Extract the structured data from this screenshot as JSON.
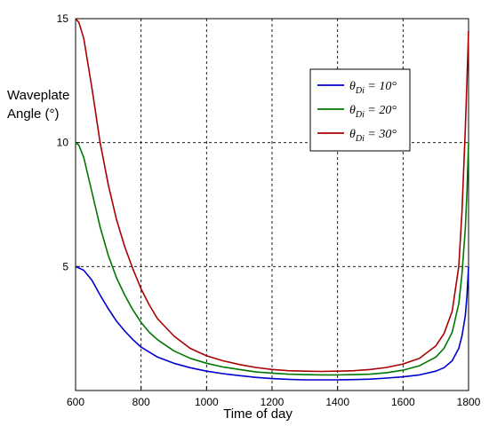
{
  "chart_data": {
    "type": "line",
    "ylabel_lines": [
      "Waveplate",
      "Angle (°)"
    ],
    "xlabel": "Time of day",
    "xlim": [
      600,
      1800
    ],
    "ylim": [
      0,
      15
    ],
    "xticks": [
      600,
      800,
      1000,
      1200,
      1400,
      1600,
      1800
    ],
    "yticks": [
      5,
      10,
      15
    ],
    "grid": true,
    "grid_style": "dashed",
    "legend_position": "upper-right",
    "series": [
      {
        "legend_symbol": "θ",
        "legend_sub": "Di",
        "legend_value": " = 10°",
        "color": "#0000cc",
        "x": [
          600,
          625,
          650,
          675,
          700,
          725,
          750,
          775,
          800,
          850,
          900,
          950,
          1000,
          1050,
          1100,
          1150,
          1200,
          1250,
          1300,
          1350,
          1400,
          1450,
          1500,
          1550,
          1600,
          1650,
          1700,
          1725,
          1750,
          1770,
          1780,
          1790,
          1795,
          1800
        ],
        "y": [
          5.0,
          4.85,
          4.45,
          3.85,
          3.3,
          2.8,
          2.4,
          2.05,
          1.75,
          1.35,
          1.1,
          0.92,
          0.78,
          0.68,
          0.6,
          0.53,
          0.48,
          0.45,
          0.43,
          0.43,
          0.43,
          0.44,
          0.46,
          0.5,
          0.55,
          0.63,
          0.78,
          0.92,
          1.2,
          1.7,
          2.2,
          3.0,
          3.8,
          5.0
        ]
      },
      {
        "legend_symbol": "θ",
        "legend_sub": "Di",
        "legend_value": " = 20°",
        "color": "#007700",
        "x": [
          600,
          610,
          625,
          650,
          675,
          700,
          725,
          750,
          775,
          800,
          825,
          850,
          900,
          950,
          1000,
          1050,
          1100,
          1150,
          1200,
          1250,
          1300,
          1350,
          1400,
          1450,
          1500,
          1550,
          1600,
          1650,
          1700,
          1725,
          1750,
          1770,
          1780,
          1790,
          1795,
          1800
        ],
        "y": [
          10.0,
          9.9,
          9.4,
          8.0,
          6.6,
          5.45,
          4.55,
          3.85,
          3.25,
          2.75,
          2.35,
          2.05,
          1.6,
          1.3,
          1.1,
          0.95,
          0.85,
          0.75,
          0.7,
          0.66,
          0.64,
          0.63,
          0.63,
          0.64,
          0.66,
          0.72,
          0.82,
          1.0,
          1.35,
          1.7,
          2.35,
          3.5,
          4.7,
          6.5,
          8.0,
          10.0
        ]
      },
      {
        "legend_symbol": "θ",
        "legend_sub": "Di",
        "legend_value": " = 30°",
        "color": "#aa0000",
        "x": [
          600,
          610,
          625,
          650,
          675,
          700,
          725,
          750,
          775,
          800,
          825,
          850,
          900,
          950,
          1000,
          1050,
          1100,
          1150,
          1200,
          1250,
          1300,
          1350,
          1400,
          1450,
          1500,
          1550,
          1600,
          1650,
          1700,
          1725,
          1750,
          1770,
          1780,
          1790,
          1795,
          1800
        ],
        "y": [
          15.0,
          14.85,
          14.2,
          12.2,
          10.0,
          8.3,
          6.9,
          5.8,
          4.9,
          4.1,
          3.45,
          2.9,
          2.2,
          1.7,
          1.4,
          1.2,
          1.05,
          0.93,
          0.85,
          0.8,
          0.78,
          0.77,
          0.78,
          0.8,
          0.85,
          0.93,
          1.07,
          1.3,
          1.8,
          2.3,
          3.2,
          5.0,
          7.2,
          10.5,
          12.5,
          14.5
        ]
      }
    ]
  }
}
